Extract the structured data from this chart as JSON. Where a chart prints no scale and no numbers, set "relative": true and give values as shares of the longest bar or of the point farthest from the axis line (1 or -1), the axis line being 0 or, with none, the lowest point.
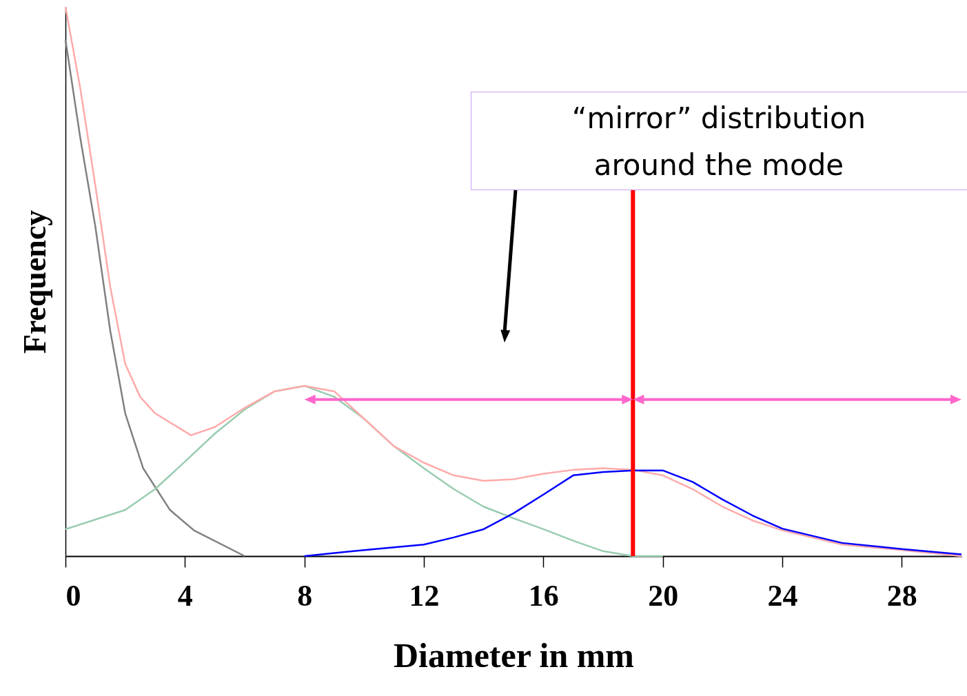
{
  "chart_data": {
    "type": "line",
    "relative": true,
    "xlabel": "Diameter in mm",
    "ylabel": "Frequency",
    "xlim": [
      0,
      30
    ],
    "xticks": [
      0,
      4,
      8,
      12,
      16,
      20,
      24,
      28
    ],
    "grid": false,
    "line_style": "solid",
    "series": [
      {
        "color": "#808080",
        "x": [
          0,
          0.5,
          1,
          1.5,
          2,
          2.6,
          3.5,
          4.3,
          6
        ],
        "values": [
          0.94,
          0.76,
          0.6,
          0.41,
          0.26,
          0.16,
          0.084,
          0.047,
          0
        ]
      },
      {
        "color": "#99ccb0",
        "x": [
          0,
          2,
          3,
          4,
          5,
          6,
          7,
          8,
          9,
          10,
          11,
          12,
          13,
          14,
          15,
          16,
          17,
          18,
          19,
          20
        ],
        "values": [
          0.049,
          0.084,
          0.122,
          0.172,
          0.223,
          0.267,
          0.3,
          0.31,
          0.29,
          0.25,
          0.2,
          0.16,
          0.122,
          0.09,
          0.069,
          0.049,
          0.028,
          0.009,
          0,
          0
        ]
      },
      {
        "color": "#ffaaaa",
        "x": [
          0,
          0.5,
          1,
          1.5,
          2,
          2.5,
          3,
          4.2,
          5,
          6,
          7,
          8,
          9,
          10,
          11,
          12,
          13,
          14,
          15,
          16,
          17,
          18,
          19,
          20,
          21,
          22,
          23,
          24,
          26,
          28,
          30
        ],
        "values": [
          1,
          0.85,
          0.675,
          0.49,
          0.35,
          0.29,
          0.26,
          0.22,
          0.235,
          0.27,
          0.3,
          0.31,
          0.3,
          0.25,
          0.2,
          0.17,
          0.147,
          0.137,
          0.14,
          0.15,
          0.157,
          0.16,
          0.157,
          0.147,
          0.122,
          0.09,
          0.065,
          0.047,
          0.021,
          0.011,
          0
        ]
      },
      {
        "color": "#0000ff",
        "x": [
          8,
          10,
          12,
          13,
          14,
          15,
          16,
          17,
          18,
          19,
          20,
          21,
          22,
          23,
          24,
          26,
          28,
          30
        ],
        "values": [
          0,
          0.011,
          0.021,
          0.034,
          0.049,
          0.078,
          0.112,
          0.147,
          0.153,
          0.156,
          0.156,
          0.135,
          0.103,
          0.074,
          0.05,
          0.024,
          0.013,
          0.003
        ]
      }
    ],
    "ref_lines": [
      {
        "axis": "x",
        "value": 19,
        "color": "#ff0000"
      }
    ],
    "annotations": [
      "“mirror” distribution\naround the mode"
    ]
  }
}
